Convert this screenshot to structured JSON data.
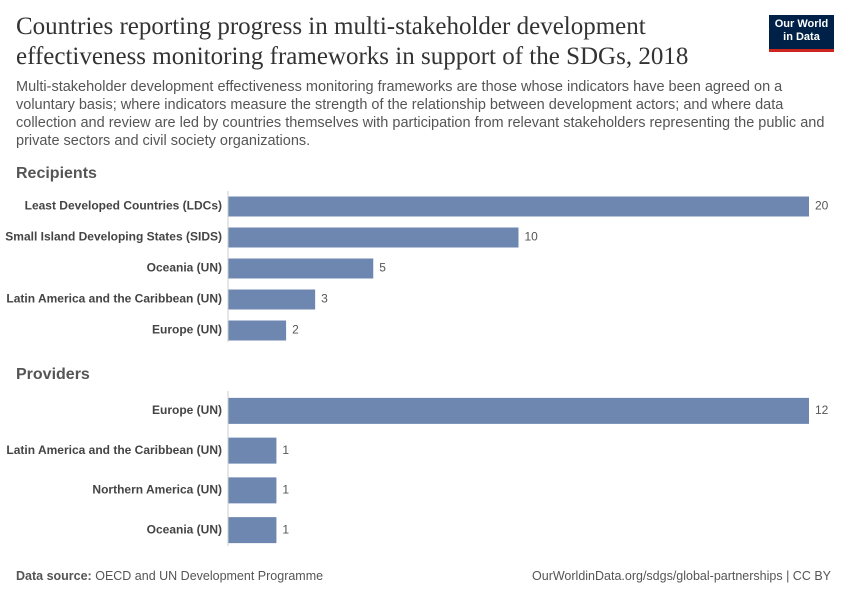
{
  "title": "Countries reporting progress in multi-stakeholder development effectiveness monitoring frameworks in support of the SDGs, 2018",
  "subtitle": "Multi-stakeholder development effectiveness monitoring frameworks are those whose indicators have been agreed on a voluntary basis; where indicators measure the strength of the relationship between development actors; and where data collection and review are led by countries themselves with participation from relevant stakeholders representing the public and private sectors and civil society organizations.",
  "logo": [
    "Our World",
    "in Data"
  ],
  "chart_data": [
    {
      "type": "bar",
      "orientation": "horizontal",
      "title": "Recipients",
      "categories": [
        "Least Developed Countries (LDCs)",
        "Small Island Developing States (SIDS)",
        "Oceania (UN)",
        "Latin America and the Caribbean (UN)",
        "Europe (UN)"
      ],
      "values": [
        20,
        10,
        5,
        3,
        2
      ],
      "color": "#6d87b1",
      "xlim": [
        0,
        20
      ]
    },
    {
      "type": "bar",
      "orientation": "horizontal",
      "title": "Providers",
      "categories": [
        "Europe (UN)",
        "Latin America and the Caribbean (UN)",
        "Northern America (UN)",
        "Oceania (UN)"
      ],
      "values": [
        12,
        1,
        1,
        1
      ],
      "color": "#6d87b1",
      "xlim": [
        0,
        12
      ]
    }
  ],
  "source_label": "Data source:",
  "source": "OECD and UN Development Programme",
  "footer_url": "OurWorldinData.org/sdgs/global-partnerships | CC BY"
}
